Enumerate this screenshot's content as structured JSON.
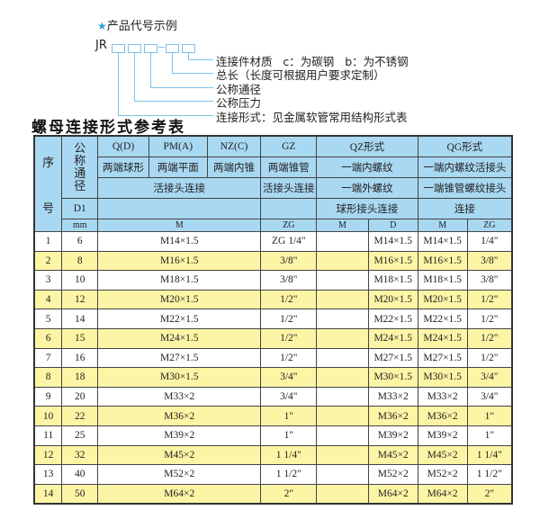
{
  "example": {
    "title": "产品代号示例",
    "star_icon": "star-icon",
    "prefix": "JR",
    "labels": [
      "连接件材质   c：为碳钢   b：为不锈钢",
      "总长（长度可根据用户要求定制）",
      "公称通径",
      "公称压力",
      "连接形式：见金属软管常用结构形式表"
    ]
  },
  "table_title": "螺母连接形式参考表",
  "header": {
    "seq": "序\n\n\n号",
    "nominal": "公称通径",
    "q": "Q(D)",
    "pm": "PM(A)",
    "nz": "NZ(C)",
    "gz": "GZ",
    "qz": "QZ形式",
    "qg": "QG形式",
    "q_desc": "两端球形",
    "pm_desc": "两端平面",
    "nz_desc": "两端内锥",
    "gz_desc": "两端锥管",
    "qz_desc1": "一端内螺纹",
    "qg_desc1": "一端内螺纹活接头",
    "union1": "活接头连接",
    "union2": "活接头连接",
    "qz_desc2": "一端外螺纹",
    "qg_desc2": "一端锥管螺纹接头",
    "d1": "D1",
    "qz_desc3": "球形接头连接",
    "qg_desc3": "连接",
    "mm": "mm",
    "m": "M",
    "zg": "ZG",
    "qz_m": "M",
    "qz_d": "D",
    "qg_m": "M",
    "qg_zg": "ZG"
  },
  "colors": {
    "header_bg": "#a9d8f2",
    "alt_row_bg": "#fdf5a6",
    "accent": "#2a9fd8"
  },
  "rows": [
    {
      "no": "1",
      "d1": "6",
      "m": "M14×1.5",
      "zg": "ZG 1/4\"",
      "qz_m": "",
      "qz_d": "M14×1.5",
      "qg_m": "M14×1.5",
      "qg_zg": "1/4\""
    },
    {
      "no": "2",
      "d1": "8",
      "m": "M16×1.5",
      "zg": "3/8\"",
      "qz_m": "",
      "qz_d": "M16×1.5",
      "qg_m": "M16×1.5",
      "qg_zg": "3/8\""
    },
    {
      "no": "3",
      "d1": "10",
      "m": "M18×1.5",
      "zg": "3/8\"",
      "qz_m": "",
      "qz_d": "M18×1.5",
      "qg_m": "M18×1.5",
      "qg_zg": "3/8\""
    },
    {
      "no": "4",
      "d1": "12",
      "m": "M20×1.5",
      "zg": "1/2\"",
      "qz_m": "",
      "qz_d": "M20×1.5",
      "qg_m": "M20×1.5",
      "qg_zg": "1/2\""
    },
    {
      "no": "5",
      "d1": "14",
      "m": "M22×1.5",
      "zg": "1/2\"",
      "qz_m": "",
      "qz_d": "M22×1.5",
      "qg_m": "M22×1.5",
      "qg_zg": "1/2\""
    },
    {
      "no": "6",
      "d1": "15",
      "m": "M24×1.5",
      "zg": "1/2\"",
      "qz_m": "",
      "qz_d": "M24×1.5",
      "qg_m": "M24×1.5",
      "qg_zg": "1/2\""
    },
    {
      "no": "7",
      "d1": "16",
      "m": "M27×1.5",
      "zg": "1/2\"",
      "qz_m": "",
      "qz_d": "M27×1.5",
      "qg_m": "M27×1.5",
      "qg_zg": "1/2\""
    },
    {
      "no": "8",
      "d1": "18",
      "m": "M30×1.5",
      "zg": "3/4\"",
      "qz_m": "",
      "qz_d": "M30×1.5",
      "qg_m": "M30×1.5",
      "qg_zg": "3/4\""
    },
    {
      "no": "9",
      "d1": "20",
      "m": "M33×2",
      "zg": "3/4\"",
      "qz_m": "",
      "qz_d": "M33×2",
      "qg_m": "M33×2",
      "qg_zg": "3/4\""
    },
    {
      "no": "10",
      "d1": "22",
      "m": "M36×2",
      "zg": "1\"",
      "qz_m": "",
      "qz_d": "M36×2",
      "qg_m": "M36×2",
      "qg_zg": "1\""
    },
    {
      "no": "11",
      "d1": "25",
      "m": "M39×2",
      "zg": "1\"",
      "qz_m": "",
      "qz_d": "M39×2",
      "qg_m": "M39×2",
      "qg_zg": "1\""
    },
    {
      "no": "12",
      "d1": "32",
      "m": "M45×2",
      "zg": "1 1/4\"",
      "qz_m": "",
      "qz_d": "M45×2",
      "qg_m": "M45×2",
      "qg_zg": "1 1/4\""
    },
    {
      "no": "13",
      "d1": "40",
      "m": "M52×2",
      "zg": "1 1/2\"",
      "qz_m": "",
      "qz_d": "M52×2",
      "qg_m": "M52×2",
      "qg_zg": "1 1/2\""
    },
    {
      "no": "14",
      "d1": "50",
      "m": "M64×2",
      "zg": "2\"",
      "qz_m": "",
      "qz_d": "M64×2",
      "qg_m": "M64×2",
      "qg_zg": "2\""
    }
  ]
}
